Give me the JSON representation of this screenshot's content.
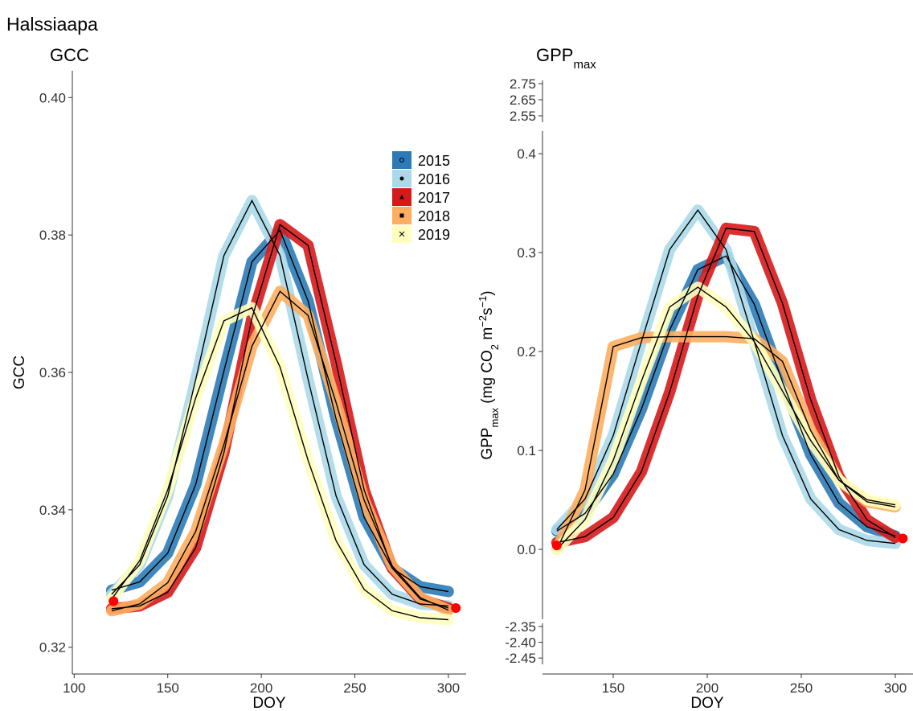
{
  "page_title": "Halssiaapa",
  "chart_data": [
    {
      "type": "line",
      "title": "GCC",
      "xlabel": "DOY",
      "ylabel": "GCC",
      "x": [
        120,
        135,
        150,
        165,
        180,
        195,
        210,
        225,
        240,
        255,
        270,
        285,
        300
      ],
      "xlim": [
        99,
        309.5
      ],
      "xticks": [
        100,
        150,
        200,
        250,
        300
      ],
      "ylim": [
        0.3161,
        0.4039
      ],
      "yticks": [
        {
          "value": 0.32,
          "label": "0.32"
        },
        {
          "value": 0.34,
          "label": "0.34"
        },
        {
          "value": 0.36,
          "label": "0.36"
        },
        {
          "value": 0.38,
          "label": "0.38"
        },
        {
          "value": 0.4,
          "label": "0.40"
        }
      ],
      "legend": "right",
      "series": [
        {
          "name": "2015",
          "color": "#2c7bb6",
          "marker": "circle-open",
          "values": [
            0.3283,
            0.3295,
            0.3337,
            0.3437,
            0.3602,
            0.3761,
            0.3807,
            0.3704,
            0.3532,
            0.3389,
            0.3315,
            0.3288,
            0.3281
          ]
        },
        {
          "name": "2016",
          "color": "#abd9e9",
          "marker": "circle",
          "values": [
            0.3277,
            0.332,
            0.342,
            0.359,
            0.377,
            0.385,
            0.377,
            0.359,
            0.342,
            0.332,
            0.3277,
            0.3263,
            0.326
          ]
        },
        {
          "name": "2017",
          "color": "#d7191c",
          "marker": "triangle",
          "values": [
            0.3256,
            0.326,
            0.328,
            0.3345,
            0.3483,
            0.3679,
            0.3815,
            0.3785,
            0.3614,
            0.3429,
            0.3315,
            0.327,
            0.3257
          ]
        },
        {
          "name": "2018",
          "color": "#fdae61",
          "marker": "square",
          "values": [
            0.3253,
            0.3263,
            0.3294,
            0.3369,
            0.3495,
            0.3638,
            0.3718,
            0.3683,
            0.3556,
            0.3414,
            0.3318,
            0.3272,
            0.3254
          ]
        },
        {
          "name": "2019",
          "color": "#ffffbf",
          "marker": "cross",
          "values": [
            0.327,
            0.3326,
            0.3429,
            0.3563,
            0.3675,
            0.3694,
            0.3608,
            0.3472,
            0.3355,
            0.3284,
            0.3253,
            0.3243,
            0.324
          ]
        }
      ],
      "endpoints": {
        "color": "#ff0000",
        "x": [
          121,
          304
        ],
        "values": [
          0.3267,
          0.3257
        ]
      }
    },
    {
      "type": "line",
      "title": "GPP",
      "title_subscript": "max",
      "xlabel": "DOY",
      "ylabel_parts": [
        {
          "text": "GPP"
        },
        {
          "text": "max",
          "shift": "sub"
        },
        {
          "text": " (mg CO"
        },
        {
          "text": "2",
          "shift": "sub"
        },
        {
          "text": " m"
        },
        {
          "text": "−2",
          "shift": "super"
        },
        {
          "text": "s"
        },
        {
          "text": "−1",
          "shift": "super"
        },
        {
          "text": ")"
        }
      ],
      "x": [
        120,
        135,
        150,
        165,
        180,
        195,
        210,
        225,
        240,
        255,
        270,
        285,
        300
      ],
      "xlim": [
        112.4,
        309.4
      ],
      "xticks": [
        150,
        200,
        250,
        300
      ],
      "ylim": [
        -0.0707,
        0.4228
      ],
      "yticks": [
        {
          "value": 0,
          "label": "0.0"
        },
        0.1,
        0.2,
        0.3,
        0.4
      ],
      "ylim_upper": [
        2.51,
        2.77
      ],
      "yticks_upper": [
        2.55,
        2.65,
        2.75
      ],
      "ylim_lower": [
        -2.47,
        -2.34
      ],
      "yticks_lower": [
        {
          "value": -2.45,
          "label": "-2.45"
        },
        {
          "value": -2.4,
          "label": "-2.40"
        },
        {
          "value": -2.35,
          "label": "-2.35"
        }
      ],
      "series": [
        {
          "name": "2015",
          "color": "#2c7bb6",
          "values": [
            0.0185,
            0.0363,
            0.0761,
            0.1418,
            0.2216,
            0.2828,
            0.2965,
            0.2478,
            0.1695,
            0.0958,
            0.0469,
            0.0228,
            0.0135
          ]
        },
        {
          "name": "2016",
          "color": "#abd9e9",
          "values": [
            0.02,
            0.051,
            0.115,
            0.21,
            0.303,
            0.343,
            0.303,
            0.21,
            0.115,
            0.051,
            0.02,
            0.009,
            0.006
          ]
        },
        {
          "name": "2017",
          "color": "#d7191c",
          "values": [
            0.0068,
            0.0129,
            0.0322,
            0.0785,
            0.1588,
            0.2563,
            0.3246,
            0.3213,
            0.2487,
            0.1513,
            0.0736,
            0.0299,
            0.0121
          ]
        },
        {
          "name": "2018",
          "color": "#fdae61",
          "values": [
            0.0,
            0.06,
            0.205,
            0.214,
            0.215,
            0.215,
            0.215,
            0.213,
            0.19,
            0.12,
            0.07,
            0.048,
            0.043
          ]
        },
        {
          "name": "2019",
          "color": "#ffffbf",
          "values": [
            0.0,
            0.03,
            0.09,
            0.17,
            0.245,
            0.265,
            0.245,
            0.21,
            0.16,
            0.11,
            0.07,
            0.05,
            0.045
          ]
        }
      ],
      "endpoints": {
        "color": "#ff0000",
        "x": [
          120,
          304
        ],
        "values": [
          0.004,
          0.011
        ]
      }
    }
  ]
}
